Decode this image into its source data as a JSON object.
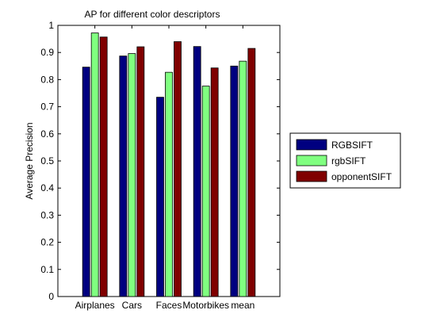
{
  "chart_data": {
    "type": "bar",
    "title": "AP for different color descriptors",
    "xlabel": "",
    "ylabel": "Average Precision",
    "ylim": [
      0,
      1
    ],
    "yticks": [
      0,
      0.1,
      0.2,
      0.3,
      0.4,
      0.5,
      0.6,
      0.7,
      0.8,
      0.9,
      1
    ],
    "ytick_labels": [
      "0",
      "0.1",
      "0.2",
      "0.3",
      "0.4",
      "0.5",
      "0.6",
      "0.7",
      "0.8",
      "0.9",
      "1"
    ],
    "categories": [
      "Airplanes",
      "Cars",
      "Faces",
      "Motorbikes",
      "mean"
    ],
    "series": [
      {
        "name": "RGBSIFT",
        "color": "#000080",
        "values": [
          0.846,
          0.887,
          0.735,
          0.922,
          0.85
        ]
      },
      {
        "name": "rgbSIFT",
        "color": "#80ff80",
        "values": [
          0.972,
          0.896,
          0.827,
          0.776,
          0.868
        ]
      },
      {
        "name": "opponentSIFT",
        "color": "#800000",
        "values": [
          0.957,
          0.921,
          0.94,
          0.843,
          0.915
        ]
      }
    ],
    "grid": false,
    "legend_placement": "outside-right"
  }
}
